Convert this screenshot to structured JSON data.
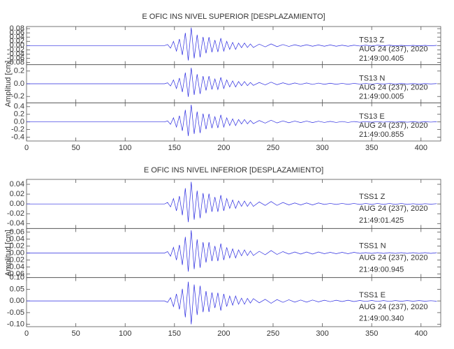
{
  "chart_data": [
    {
      "type": "line",
      "title": "E OFIC INS NIVEL SUPERIOR [DESPLAZAMIENTO]",
      "ylabel": "Amplitud [cm]",
      "xlim": [
        0,
        420
      ],
      "xticks": [
        0,
        50,
        100,
        150,
        200,
        250,
        300,
        350,
        400
      ],
      "x": [
        0,
        140,
        143,
        146,
        149,
        152,
        155,
        158,
        161,
        164,
        167,
        170,
        173,
        176,
        179,
        182,
        185,
        188,
        191,
        194,
        197,
        200,
        203,
        206,
        209,
        212,
        215,
        218,
        221,
        224,
        227,
        230,
        236,
        242,
        248,
        254,
        260,
        266,
        272,
        278,
        284,
        290,
        296,
        302,
        308,
        314,
        320,
        326,
        332,
        338,
        344,
        350,
        356,
        362,
        368,
        374,
        380,
        386,
        392,
        398,
        404,
        410,
        416
      ],
      "panels": [
        {
          "annotation": [
            "TS13   Z",
            "AUG 24 (237), 2020",
            "21:49:00.405"
          ],
          "color": "#2a2ae0",
          "ylim": [
            -0.09,
            0.09
          ],
          "yticks": [
            {
              "value": -0.08,
              "label": "-0.08"
            },
            {
              "value": -0.06,
              "label": "-0.06"
            },
            {
              "value": -0.04,
              "label": "-0.04"
            },
            {
              "value": -0.02,
              "label": "-0.02"
            },
            {
              "value": 0,
              "label": "0.00"
            },
            {
              "value": 0.02,
              "label": "0.02"
            },
            {
              "value": 0.04,
              "label": "0.04"
            },
            {
              "value": 0.06,
              "label": "0.06"
            },
            {
              "value": 0.08,
              "label": "0.08"
            }
          ],
          "values": [
            0,
            0,
            0.005,
            -0.012,
            0.02,
            -0.026,
            0.031,
            -0.044,
            0.06,
            -0.07,
            0.085,
            -0.06,
            0.051,
            -0.055,
            0.041,
            -0.036,
            0.04,
            -0.031,
            0.026,
            -0.03,
            0.035,
            -0.026,
            0.02,
            -0.018,
            0.015,
            -0.018,
            0.012,
            -0.01,
            0.012,
            -0.009,
            0.008,
            -0.009,
            0.007,
            -0.006,
            0.008,
            -0.005,
            0.005,
            -0.004,
            0.004,
            -0.003,
            0.004,
            -0.003,
            0.003,
            -0.003,
            0.003,
            -0.003,
            0.002,
            -0.003,
            0.002,
            -0.002,
            0.002,
            -0.002,
            0.002,
            -0.001,
            0.002,
            -0.001,
            0.001,
            -0.001,
            0.001,
            -0.001,
            0.001,
            -0.001,
            0.001
          ]
        },
        {
          "annotation": [
            "TS13   N",
            "AUG 24 (237), 2020",
            "21:49:00.005"
          ],
          "color": "#2a2ae0",
          "ylim": [
            -0.3,
            0.3
          ],
          "yticks": [
            -0.2,
            {
              "value": 0,
              "label": "0.0"
            },
            0.2
          ],
          "values": [
            0,
            0,
            0.015,
            -0.035,
            0.06,
            -0.075,
            0.09,
            -0.13,
            0.175,
            -0.205,
            0.25,
            -0.175,
            0.15,
            -0.16,
            0.12,
            -0.105,
            0.12,
            -0.09,
            0.075,
            -0.09,
            0.1,
            -0.075,
            0.06,
            -0.05,
            0.045,
            -0.05,
            0.035,
            -0.03,
            0.035,
            -0.03,
            0.02,
            -0.025,
            0.02,
            -0.018,
            0.025,
            -0.015,
            0.015,
            -0.012,
            0.012,
            -0.01,
            0.012,
            -0.01,
            0.01,
            -0.008,
            0.008,
            -0.008,
            0.006,
            -0.008,
            0.006,
            -0.005,
            0.005,
            -0.005,
            0.005,
            -0.004,
            0.005,
            -0.004,
            0.004,
            -0.004,
            0.003,
            -0.004,
            0.003,
            -0.003,
            0.003
          ]
        },
        {
          "annotation": [
            "TS13   E",
            "AUG 24 (237), 2020",
            "21:49:00.855"
          ],
          "color": "#2a2ae0",
          "ylim": [
            -0.5,
            0.5
          ],
          "yticks": [
            -0.4,
            -0.2,
            {
              "value": 0,
              "label": "0.0"
            },
            0.2,
            0.4
          ],
          "values": [
            0,
            0,
            0.027,
            -0.063,
            0.108,
            -0.135,
            0.162,
            -0.234,
            0.315,
            -0.369,
            0.45,
            -0.315,
            0.27,
            -0.29,
            0.216,
            -0.19,
            0.21,
            -0.162,
            0.135,
            -0.158,
            0.185,
            -0.135,
            0.108,
            -0.095,
            0.081,
            -0.095,
            0.063,
            -0.054,
            0.063,
            -0.05,
            0.04,
            -0.045,
            0.036,
            -0.032,
            0.045,
            -0.027,
            0.027,
            -0.022,
            0.022,
            -0.018,
            0.022,
            -0.018,
            0.018,
            -0.014,
            0.014,
            -0.014,
            0.011,
            -0.014,
            0.011,
            -0.009,
            0.009,
            -0.009,
            0.009,
            -0.007,
            0.009,
            -0.007,
            0.007,
            -0.007,
            0.005,
            -0.007,
            0.005,
            -0.005,
            0.005
          ]
        }
      ]
    },
    {
      "type": "line",
      "title": "E OFIC INS NIVEL INFERIOR [DESPLAZAMIENTO]",
      "ylabel": "Amplitud [cm]",
      "xlim": [
        0,
        420
      ],
      "xticks": [
        0,
        50,
        100,
        150,
        200,
        250,
        300,
        350,
        400
      ],
      "x": [
        0,
        140,
        143,
        146,
        149,
        152,
        155,
        158,
        161,
        164,
        167,
        170,
        173,
        176,
        179,
        182,
        185,
        188,
        191,
        194,
        197,
        200,
        203,
        206,
        209,
        212,
        215,
        218,
        221,
        224,
        227,
        230,
        236,
        242,
        248,
        254,
        260,
        266,
        272,
        278,
        284,
        290,
        296,
        302,
        308,
        314,
        320,
        326,
        332,
        338,
        344,
        350,
        356,
        362,
        368,
        374,
        380,
        386,
        392,
        398,
        404,
        410,
        416
      ],
      "panels": [
        {
          "annotation": [
            "TSS1   Z",
            "AUG 24 (237), 2020",
            "21:49:01.425"
          ],
          "color": "#2a2ae0",
          "ylim": [
            -0.05,
            0.05
          ],
          "yticks": [
            -0.04,
            -0.02,
            {
              "value": 0,
              "label": "0.00"
            },
            0.02,
            0.04
          ],
          "values": [
            0,
            0,
            0.003,
            -0.006,
            0.011,
            -0.014,
            0.016,
            -0.023,
            0.032,
            -0.037,
            0.045,
            -0.032,
            0.027,
            -0.029,
            0.022,
            -0.019,
            0.021,
            -0.016,
            0.014,
            -0.016,
            0.018,
            -0.014,
            0.011,
            -0.009,
            0.008,
            -0.009,
            0.006,
            -0.005,
            0.006,
            -0.005,
            0.004,
            -0.005,
            0.004,
            -0.003,
            0.005,
            -0.003,
            0.003,
            -0.002,
            0.002,
            -0.002,
            0.002,
            -0.002,
            0.002,
            -0.001,
            0.001,
            -0.001,
            0.001,
            -0.001,
            0.001,
            -0.001,
            0.001,
            -0.001,
            0.001,
            -0.001,
            0.001,
            -0.001,
            0.001,
            -0.001,
            0.0005,
            -0.001,
            0.0005,
            -0.0005,
            0.0005
          ]
        },
        {
          "annotation": [
            "TSS1   N",
            "AUG 24 (237), 2020",
            "21:49:00.945"
          ],
          "color": "#2a2ae0",
          "ylim": [
            -0.07,
            0.07
          ],
          "yticks": [
            -0.06,
            -0.04,
            -0.02,
            {
              "value": 0,
              "label": "0.00"
            },
            0.02,
            0.04,
            0.06
          ],
          "values": [
            0,
            0,
            0.004,
            -0.009,
            0.016,
            -0.02,
            0.023,
            -0.034,
            0.046,
            -0.053,
            0.065,
            -0.046,
            0.039,
            -0.042,
            0.031,
            -0.027,
            0.031,
            -0.023,
            0.02,
            -0.023,
            0.027,
            -0.02,
            0.016,
            -0.014,
            0.012,
            -0.014,
            0.009,
            -0.008,
            0.009,
            -0.007,
            0.006,
            -0.007,
            0.005,
            -0.005,
            0.007,
            -0.004,
            0.004,
            -0.003,
            0.003,
            -0.003,
            0.003,
            -0.003,
            0.003,
            -0.002,
            0.002,
            -0.002,
            0.002,
            -0.002,
            0.002,
            -0.001,
            0.001,
            -0.001,
            0.001,
            -0.001,
            0.001,
            -0.001,
            0.001,
            -0.001,
            0.001,
            -0.001,
            0.001,
            -0.001,
            0.001
          ]
        },
        {
          "annotation": [
            "TSS1   E",
            "AUG 24 (237), 2020",
            "21:49:00.340"
          ],
          "color": "#2a2ae0",
          "ylim": [
            -0.11,
            0.1
          ],
          "yticks": [
            {
              "value": -0.1,
              "label": "-0.10"
            },
            -0.05,
            {
              "value": 0,
              "label": "0.00"
            },
            0.05,
            {
              "value": 0.1,
              "label": "0.10"
            }
          ],
          "values": [
            0,
            0,
            -0.006,
            0.014,
            -0.024,
            0.03,
            -0.036,
            0.052,
            -0.07,
            0.082,
            -0.1,
            0.07,
            -0.06,
            0.065,
            -0.048,
            0.042,
            -0.047,
            0.036,
            -0.03,
            0.035,
            -0.041,
            0.03,
            -0.024,
            0.021,
            -0.018,
            0.021,
            -0.014,
            0.012,
            -0.014,
            0.011,
            -0.009,
            0.01,
            -0.008,
            0.007,
            -0.01,
            0.006,
            -0.006,
            0.005,
            -0.005,
            0.004,
            -0.005,
            0.004,
            -0.004,
            0.003,
            -0.003,
            0.003,
            -0.0025,
            0.003,
            -0.0025,
            0.002,
            -0.002,
            0.002,
            -0.002,
            0.0015,
            -0.002,
            0.0015,
            -0.0015,
            0.0015,
            -0.001,
            0.0015,
            -0.001,
            0.001,
            -0.001
          ]
        }
      ]
    }
  ]
}
